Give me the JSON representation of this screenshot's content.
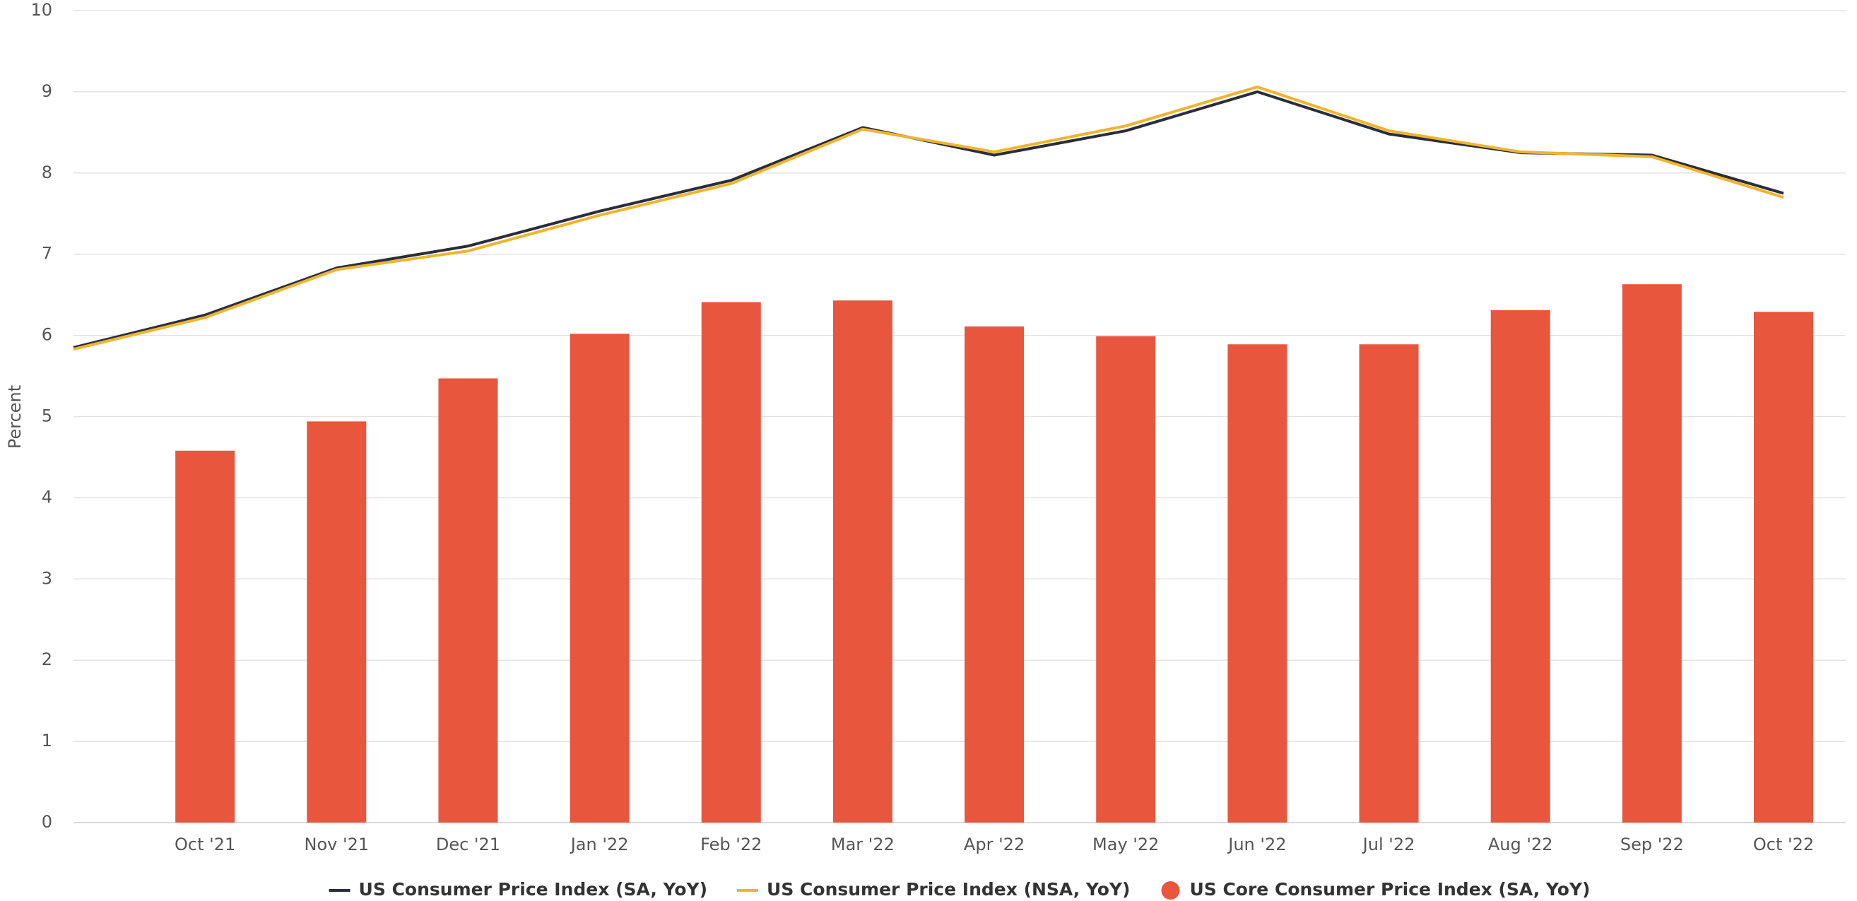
{
  "chart_data": {
    "type": "bar-line",
    "y_label": "Percent",
    "categories": [
      null,
      "Oct '21",
      "Nov '21",
      "Dec '21",
      "Jan '22",
      "Feb '22",
      "Mar '22",
      "Apr '22",
      "May '22",
      "Jun '22",
      "Jul '22",
      "Aug '22",
      "Sep '22",
      "Oct '22"
    ],
    "series": [
      {
        "name": "US Consumer Price Index (SA, YoY)",
        "type": "line",
        "color": "#2b2d3c",
        "values": [
          5.85,
          6.25,
          6.83,
          7.1,
          7.53,
          7.91,
          8.56,
          8.22,
          8.52,
          9.0,
          8.48,
          8.25,
          8.22,
          7.75
        ]
      },
      {
        "name": "US Consumer Price Index (NSA, YoY)",
        "type": "line",
        "color": "#f0b42d",
        "values": [
          5.83,
          6.22,
          6.81,
          7.04,
          7.48,
          7.87,
          8.54,
          8.26,
          8.58,
          9.06,
          8.52,
          8.26,
          8.2,
          7.7
        ]
      },
      {
        "name": "US Core Consumer Price Index (SA, YoY)",
        "type": "bar",
        "color": "#e8563e",
        "values": [
          null,
          4.58,
          4.94,
          5.47,
          6.02,
          6.41,
          6.43,
          6.11,
          5.99,
          5.89,
          5.89,
          6.31,
          6.63,
          6.29
        ]
      }
    ],
    "ylim": [
      0,
      10
    ],
    "yticks": [
      0,
      1,
      2,
      3,
      4,
      5,
      6,
      7,
      8,
      9,
      10
    ],
    "grid": true,
    "legend": "bottom"
  }
}
